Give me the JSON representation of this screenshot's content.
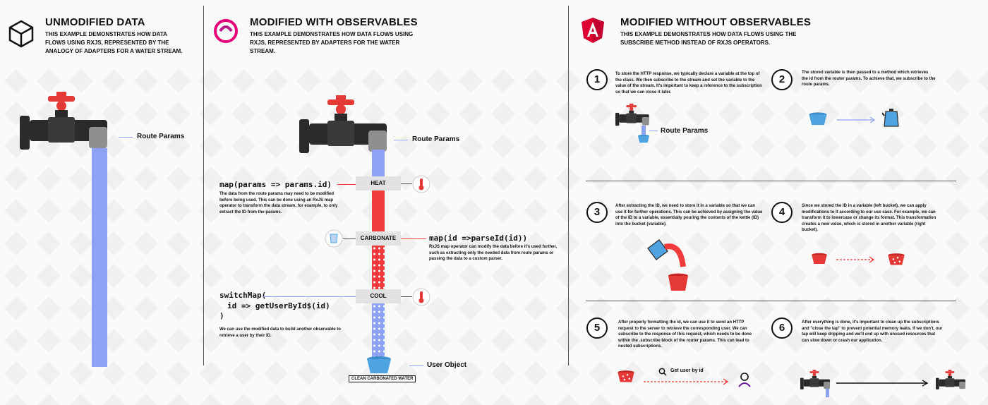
{
  "colors": {
    "water": "#8ea2f5",
    "red": "#ef3b3b",
    "tap_dark": "#2a2a2a",
    "tap_red": "#e53935",
    "bucket_blue": "#4fa3e0",
    "bucket_red": "#e53935"
  },
  "col1": {
    "title": "UNMODIFIED DATA",
    "desc": "THIS EXAMPLE DEMONSTRATES HOW DATA FLOWS USING RXJS, REPRESENTED BY THE ANALOGY OF ADAPTERS FOR A WATER STREAM.",
    "route_params": "Route Params",
    "icon": "cube-icon"
  },
  "col2": {
    "title": "MODIFIED WITH OBSERVABLES",
    "desc": "THIS EXAMPLE DEMONSTRATES HOW DATA FLOWS USING RXJS, REPRESENTED BY ADAPTERS FOR THE WATER STREAM.",
    "icon": "rxjs-logo-icon",
    "route_params": "Route Params",
    "heat": "HEAT",
    "carbonate": "CARBONATE",
    "cool": "COOL",
    "map1_code": "map(params => params.id)",
    "map1_text": "The data from the route params may need to be modified before being used. This can be done using an RxJS map operator to transform the data stream, for example, to only extract the ID from the params.",
    "map2_code": "map(id =>parseId(id))",
    "map2_text": "RxJS map operator can modify the data before it's used further, such as extracting only the needed data from route params or passing the data to a custom parser.",
    "switch_line1": "switchMap(",
    "switch_line2": "id => getUserById$(id)",
    "switch_line3": ")",
    "switch_text": "We can use the modified data to build another observable to retrieve a user by their ID.",
    "user_object": "User Object",
    "clean": "CLEAN CARBONATED WATER"
  },
  "col3": {
    "title": "MODIFIED WITHOUT OBSERVABLES",
    "desc": "THIS EXAMPLE DEMONSTRATES HOW DATA FLOWS USING THE SUBSCRIBE METHOD INSTEAD OF RXJS OPERATORS.",
    "icon": "angular-logo-icon",
    "steps": [
      {
        "n": "1",
        "text": "To store the HTTP response, we typically declare a variable at the top of the class. We then subscribe to the stream and set the variable to the value of the stream. It's important to keep a reference to the subscription so that we can close it later."
      },
      {
        "n": "2",
        "text": "The stored variable is then passed to a method which retrieves the id from the router params. To achieve that, we subscribe to the route params."
      },
      {
        "n": "3",
        "text": "After extracting the ID, we need to store it in a variable so that we can use it for further operations. This can be achieved by assigning the value of the ID to a variable, essentially pouring the contents of the kettle (ID) into the bucket (variable)."
      },
      {
        "n": "4",
        "text": "Since we stored the ID in a variable (left bucket), we can apply modifications to it according to our use case. For example, we can transform it to lowercase or change its format. This transformation creates a new value, which is stored in another variable (right bucket)."
      },
      {
        "n": "5",
        "text": "After properly formatting the id, we can use it to send an HTTP request to the server to retrieve the corresponding user. We can subscribe to the response of this request, which needs to be done within the .subscribe block of the router params. This can lead to nested subscriptions."
      },
      {
        "n": "6",
        "text": "After everything is done, it's important to clean up the subscriptions and \"close the tap\" to prevent potential memory leaks. If we don't, our tap will keep dripping and we'll end up with unused resources that can slow down or crash our application."
      }
    ],
    "route_params": "Route Params",
    "get_user": "Get user by id"
  }
}
